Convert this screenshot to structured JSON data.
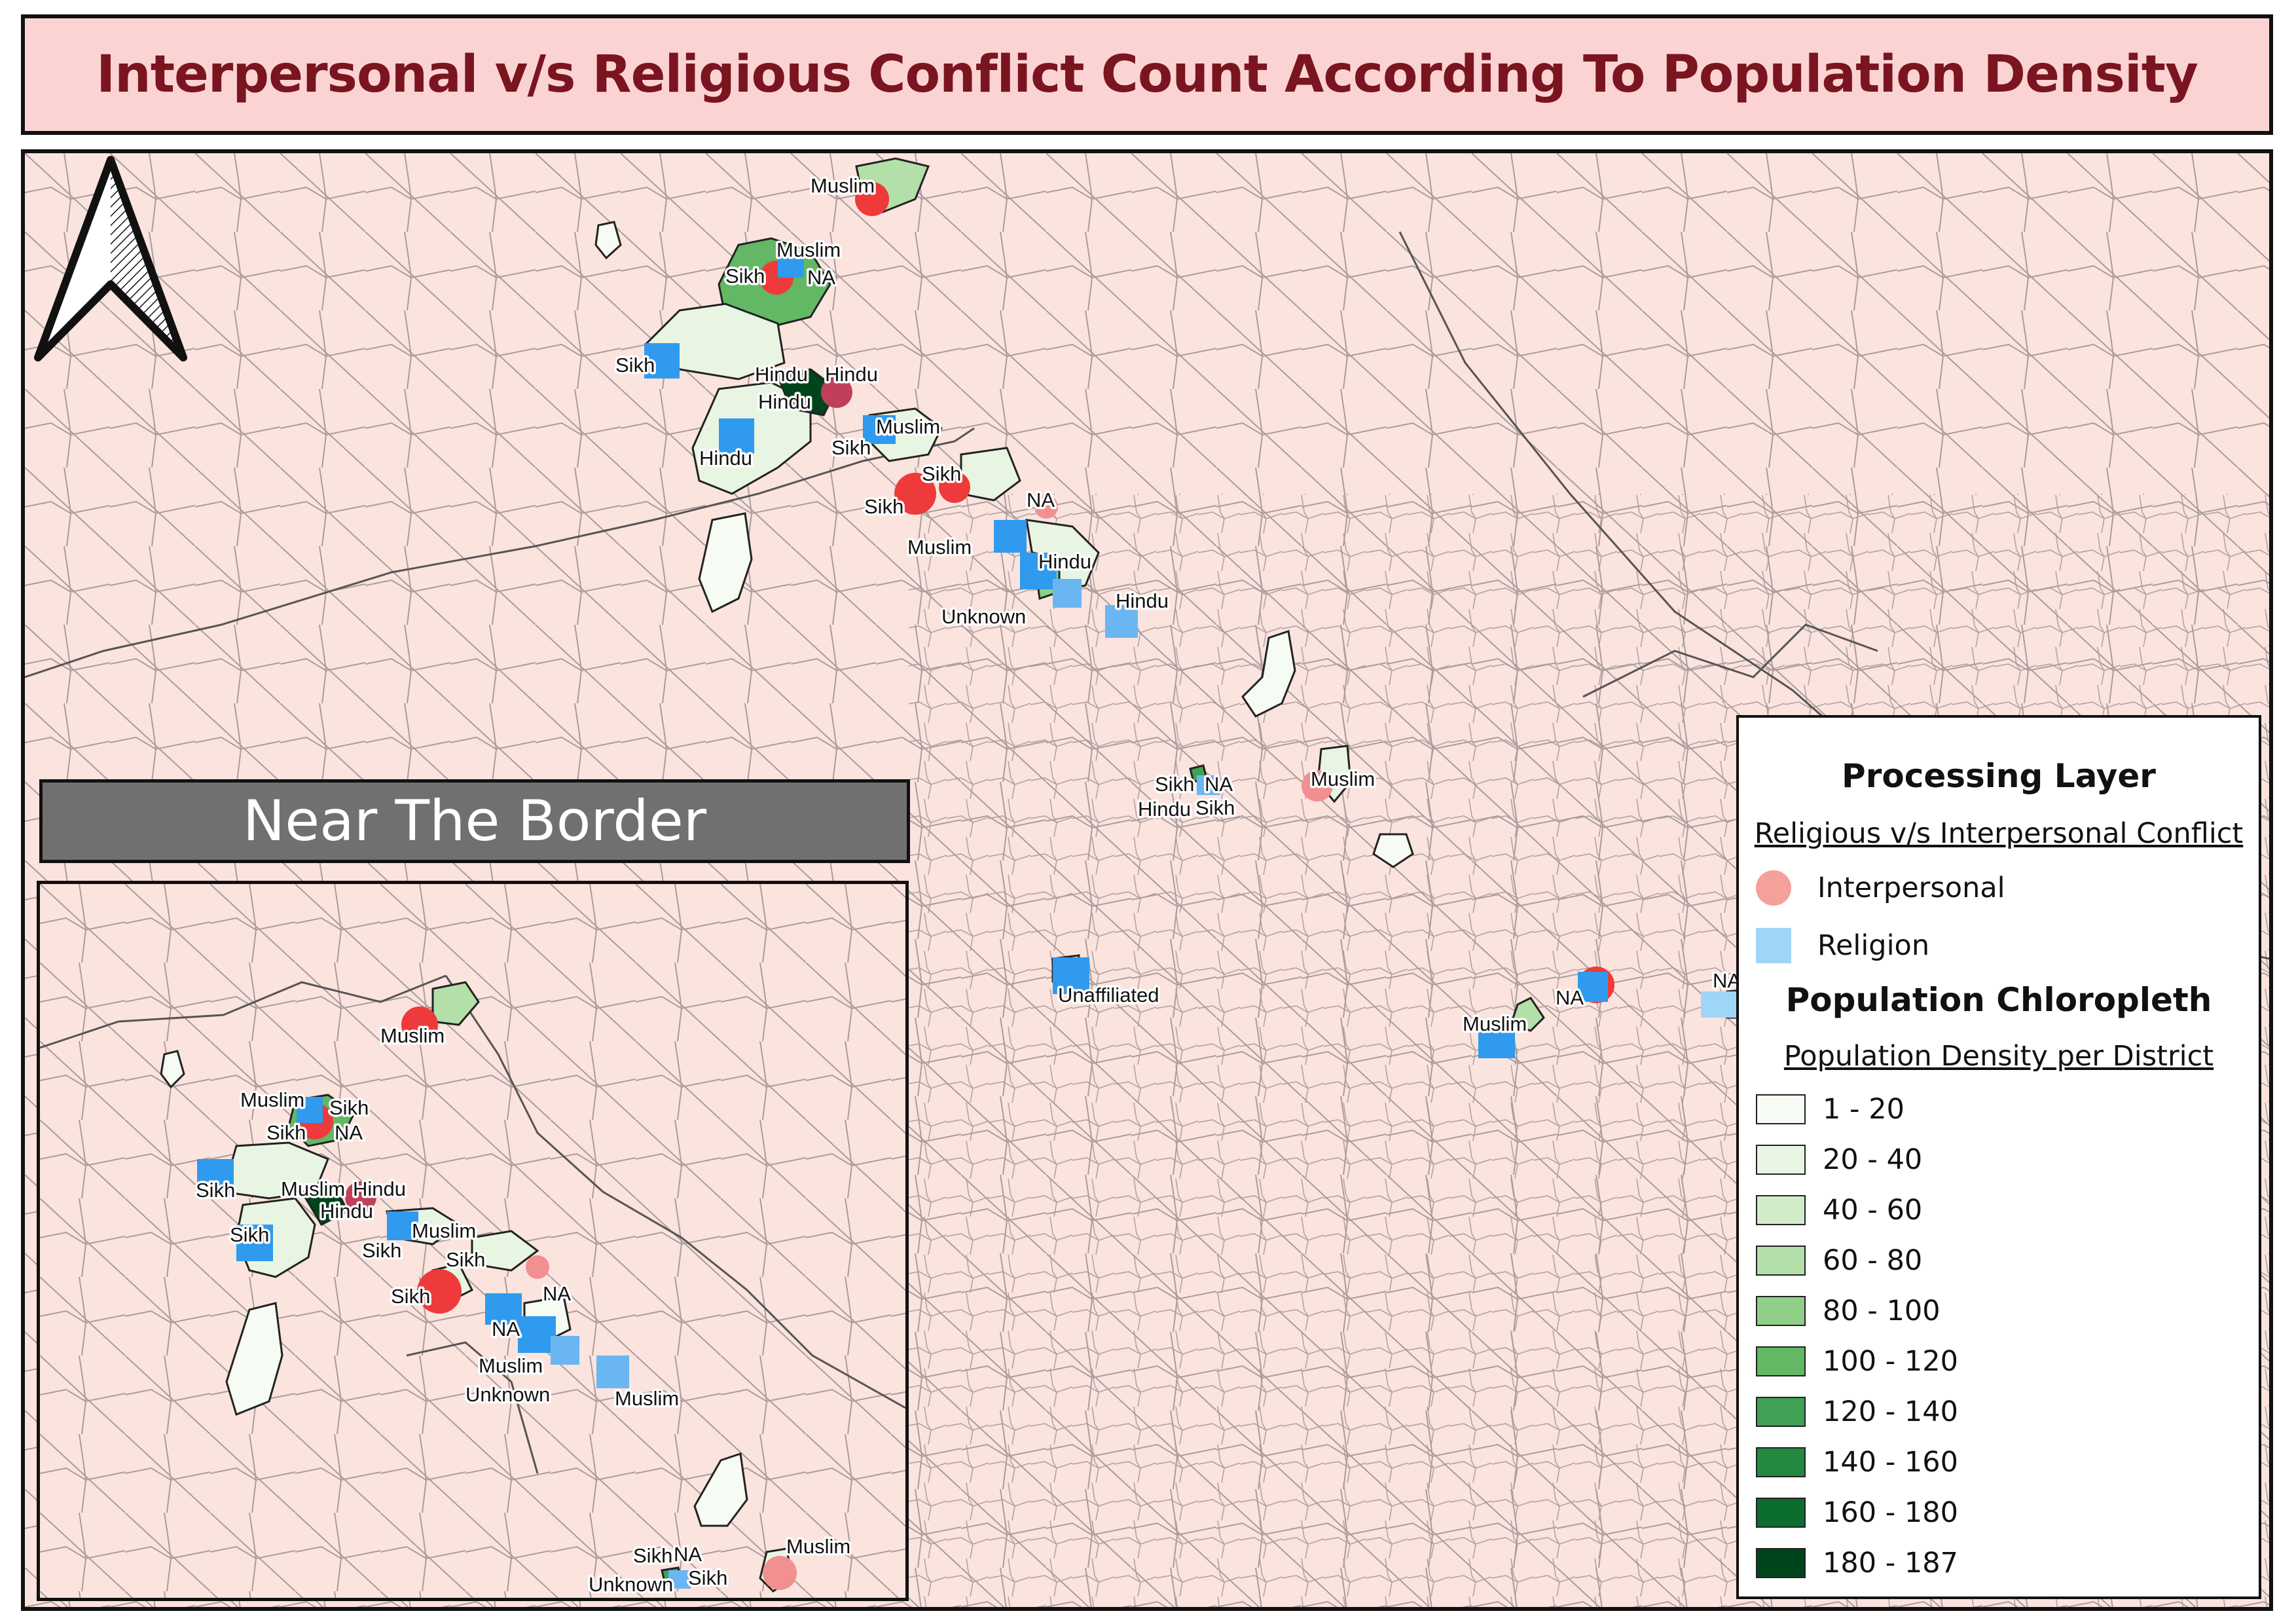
{
  "title": "Interpersonal v/s Religious Conflict Count According To Population Density",
  "inset_title": "Near The Border",
  "legend": {
    "layer_title": "Processing Layer",
    "layer_subtitle": "Religious v/s Interpersonal Conflict",
    "point_types": [
      {
        "label": "Interpersonal",
        "color": "#f4a09b",
        "shape": "circle"
      },
      {
        "label": "Religion",
        "color": "#9fd6f7",
        "shape": "square"
      }
    ],
    "choropleth_title": "Population Chloropleth",
    "choropleth_subtitle": "Population Density per District",
    "classes": [
      {
        "label": "1 - 20",
        "color": "#f6fbf3"
      },
      {
        "label": "20 - 40",
        "color": "#e9f5e3"
      },
      {
        "label": "40 - 60",
        "color": "#d2ecca"
      },
      {
        "label": "60 - 80",
        "color": "#b3dfa8"
      },
      {
        "label": "80 - 100",
        "color": "#8fcf87"
      },
      {
        "label": "100 - 120",
        "color": "#62b865"
      },
      {
        "label": "120 - 140",
        "color": "#3fa254"
      },
      {
        "label": "140 - 160",
        "color": "#22893f"
      },
      {
        "label": "160 - 180",
        "color": "#0b6e2e"
      },
      {
        "label": "180 - 187",
        "color": "#00441b"
      }
    ]
  },
  "map_colors": {
    "land": "#fbe3de",
    "boundary": "#9a8f8f",
    "ocean": "#fdf6ec",
    "interpersonal": "#ee3a3a",
    "religion": "#2f9aee"
  },
  "main_labels": [
    {
      "id": "m1",
      "text": "Muslim"
    },
    {
      "id": "m2",
      "text": "Muslim"
    },
    {
      "id": "m3",
      "text": "Sikh"
    },
    {
      "id": "m4",
      "text": "NA"
    },
    {
      "id": "m5",
      "text": "Sikh"
    },
    {
      "id": "m6",
      "text": "Hindu"
    },
    {
      "id": "m7",
      "text": "Hindu"
    },
    {
      "id": "m8",
      "text": "Hindu"
    },
    {
      "id": "m9",
      "text": "Hindu"
    },
    {
      "id": "m10",
      "text": "Muslim"
    },
    {
      "id": "m11",
      "text": "Sikh"
    },
    {
      "id": "m12",
      "text": "Sikh"
    },
    {
      "id": "m13",
      "text": "Sikh"
    },
    {
      "id": "m14",
      "text": "NA"
    },
    {
      "id": "m15",
      "text": "Muslim"
    },
    {
      "id": "m16",
      "text": "Hindu"
    },
    {
      "id": "m17",
      "text": "Unknown"
    },
    {
      "id": "m18",
      "text": "Hindu"
    },
    {
      "id": "m19",
      "text": "Sikh"
    },
    {
      "id": "m20",
      "text": "NA"
    },
    {
      "id": "m21",
      "text": "Hindu"
    },
    {
      "id": "m22",
      "text": "Sikh"
    },
    {
      "id": "m23",
      "text": "Muslim"
    },
    {
      "id": "m24",
      "text": "Unaffiliated"
    },
    {
      "id": "m25",
      "text": "NA"
    },
    {
      "id": "m26",
      "text": "Muslim"
    },
    {
      "id": "m27",
      "text": "NA"
    }
  ],
  "inset_labels": [
    {
      "id": "i1",
      "text": "Muslim"
    },
    {
      "id": "i2",
      "text": "Muslim"
    },
    {
      "id": "i3",
      "text": "Sikh"
    },
    {
      "id": "i4",
      "text": "Sikh"
    },
    {
      "id": "i5",
      "text": "NA"
    },
    {
      "id": "i6",
      "text": "Sikh"
    },
    {
      "id": "i7",
      "text": "Muslim"
    },
    {
      "id": "i8",
      "text": "Hindu"
    },
    {
      "id": "i9",
      "text": "Hindu"
    },
    {
      "id": "i10",
      "text": "Sikh"
    },
    {
      "id": "i11",
      "text": "Muslim"
    },
    {
      "id": "i12",
      "text": "Sikh"
    },
    {
      "id": "i13",
      "text": "Sikh"
    },
    {
      "id": "i14",
      "text": "Sikh"
    },
    {
      "id": "i15",
      "text": "NA"
    },
    {
      "id": "i16",
      "text": "NA"
    },
    {
      "id": "i17",
      "text": "Muslim"
    },
    {
      "id": "i18",
      "text": "Unknown"
    },
    {
      "id": "i19",
      "text": "Muslim"
    },
    {
      "id": "i20",
      "text": "Muslim"
    },
    {
      "id": "i21",
      "text": "Sikh"
    },
    {
      "id": "i22",
      "text": "NA"
    },
    {
      "id": "i23",
      "text": "Unknown"
    },
    {
      "id": "i24",
      "text": "Sikh"
    }
  ]
}
